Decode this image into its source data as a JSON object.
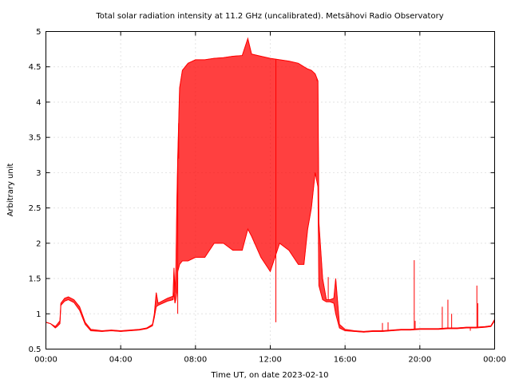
{
  "chart_data": {
    "type": "line",
    "title": "Total solar radiation intensity at 11.2 GHz (uncalibrated). Metsähovi Radio Observatory",
    "xlabel": "Time UT, on date 2023-02-10",
    "ylabel": "Arbitrary unit",
    "xlim": [
      "00:00",
      "24:00"
    ],
    "ylim": [
      0.5,
      5
    ],
    "x_ticks": [
      "00:00",
      "04:00",
      "08:00",
      "12:00",
      "16:00",
      "20:00",
      "00:00"
    ],
    "y_ticks": [
      "0.5",
      "1",
      "1.5",
      "2",
      "2.5",
      "3",
      "3.5",
      "4",
      "4.5",
      "5"
    ],
    "grid": true,
    "line_color": "#ff0000",
    "series": [
      {
        "x_hours": [
          0,
          0.25,
          0.5,
          0.6,
          0.75,
          0.8,
          1.0,
          1.2,
          1.5,
          1.8,
          2.1,
          2.4,
          3.0,
          3.5,
          4.0,
          4.5,
          5.0,
          5.4,
          5.7,
          5.8,
          5.9,
          6.0,
          6.5,
          6.8,
          6.85,
          6.9,
          6.95,
          7.0,
          7.05,
          7.15,
          7.3,
          7.6,
          8.0,
          8.5,
          9.0,
          9.5,
          10.0,
          10.5,
          10.8,
          11.0,
          11.5,
          12.0,
          12.5,
          13.0,
          13.5,
          13.8,
          14.0,
          14.2,
          14.4,
          14.55,
          14.6,
          14.8,
          15.0,
          15.2,
          15.4,
          15.5,
          15.7,
          16.0,
          16.5,
          17.0,
          17.5,
          18.0,
          18.5,
          19.0,
          19.5,
          20.0,
          20.5,
          21.0,
          21.5,
          22.0,
          22.5,
          23.0,
          23.5,
          23.8,
          24.0
        ],
        "y_upper": [
          0.88,
          0.86,
          0.82,
          0.85,
          0.9,
          1.15,
          1.22,
          1.24,
          1.2,
          1.1,
          0.88,
          0.78,
          0.76,
          0.77,
          0.76,
          0.77,
          0.78,
          0.8,
          0.85,
          1.0,
          1.3,
          1.15,
          1.22,
          1.25,
          1.65,
          1.3,
          1.6,
          2.5,
          3.2,
          4.2,
          4.45,
          4.55,
          4.6,
          4.6,
          4.62,
          4.63,
          4.65,
          4.66,
          4.9,
          4.68,
          4.65,
          4.62,
          4.6,
          4.58,
          4.55,
          4.5,
          4.47,
          4.45,
          4.4,
          4.3,
          2.3,
          1.5,
          1.2,
          1.2,
          1.22,
          1.5,
          0.85,
          0.78,
          0.76,
          0.75,
          0.76,
          0.76,
          0.77,
          0.78,
          0.78,
          0.79,
          0.79,
          0.79,
          0.8,
          0.8,
          0.81,
          0.81,
          0.82,
          0.83,
          0.92
        ],
        "y_lower": [
          0.88,
          0.86,
          0.8,
          0.82,
          0.86,
          1.12,
          1.18,
          1.2,
          1.16,
          1.05,
          0.85,
          0.76,
          0.75,
          0.76,
          0.75,
          0.76,
          0.77,
          0.79,
          0.83,
          0.95,
          1.1,
          1.12,
          1.18,
          1.2,
          1.3,
          1.15,
          1.2,
          1.3,
          1.6,
          1.7,
          1.75,
          1.75,
          1.8,
          1.8,
          2.0,
          2.0,
          1.9,
          1.9,
          2.2,
          2.1,
          1.8,
          1.6,
          2.0,
          1.9,
          1.7,
          1.7,
          2.2,
          2.5,
          3.0,
          2.8,
          1.4,
          1.2,
          1.17,
          1.17,
          1.15,
          1.0,
          0.8,
          0.76,
          0.75,
          0.74,
          0.75,
          0.75,
          0.76,
          0.77,
          0.77,
          0.78,
          0.78,
          0.78,
          0.79,
          0.79,
          0.8,
          0.8,
          0.81,
          0.82,
          0.9
        ]
      }
    ],
    "spikes": [
      {
        "x_hours": 7.05,
        "y": 1.0
      },
      {
        "x_hours": 7.1,
        "y": 3.2
      },
      {
        "x_hours": 12.3,
        "y": 0.88
      },
      {
        "x_hours": 14.5,
        "y": 4.3
      },
      {
        "x_hours": 15.1,
        "y": 1.52
      },
      {
        "x_hours": 18.0,
        "y": 0.87
      },
      {
        "x_hours": 18.3,
        "y": 0.88
      },
      {
        "x_hours": 19.7,
        "y": 1.76
      },
      {
        "x_hours": 19.75,
        "y": 0.9
      },
      {
        "x_hours": 21.2,
        "y": 1.1
      },
      {
        "x_hours": 21.5,
        "y": 1.2
      },
      {
        "x_hours": 21.7,
        "y": 1.0
      },
      {
        "x_hours": 22.7,
        "y": 0.76
      },
      {
        "x_hours": 23.05,
        "y": 1.4
      },
      {
        "x_hours": 23.1,
        "y": 1.15
      }
    ]
  }
}
